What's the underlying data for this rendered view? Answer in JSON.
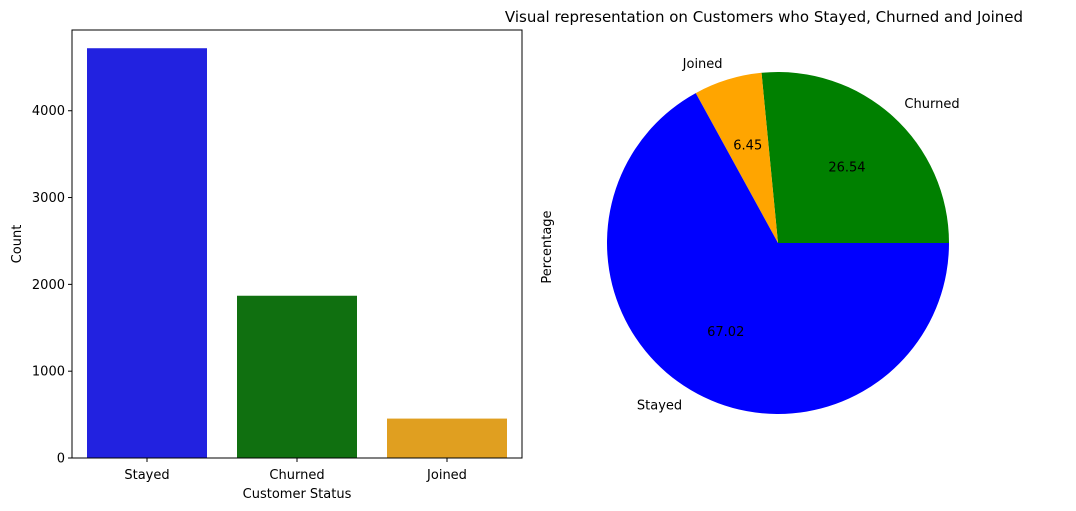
{
  "chart_data": [
    {
      "type": "bar",
      "title": "",
      "xlabel": "Customer Status",
      "ylabel": "Count",
      "categories": [
        "Stayed",
        "Churned",
        "Joined"
      ],
      "values": [
        4720,
        1869,
        454
      ],
      "colors": [
        "#2222e0",
        "#107010",
        "#e09f20"
      ],
      "ylim": [
        0,
        4930
      ],
      "yticks": [
        0,
        1000,
        2000,
        3000,
        4000
      ],
      "ytick_labels": [
        "0",
        "1000",
        "2000",
        "3000",
        "4000"
      ],
      "grid": false
    },
    {
      "type": "pie",
      "title": "Visual representation on Customers who Stayed, Churned and Joined",
      "ylabel": "Percentage",
      "labels": [
        "Churned",
        "Joined",
        "Stayed"
      ],
      "values": [
        26.54,
        6.45,
        67.02
      ],
      "value_labels": [
        "26.54",
        "6.45",
        "67.02"
      ],
      "colors": [
        "#008000",
        "#ffa500",
        "#0000ff"
      ]
    }
  ]
}
